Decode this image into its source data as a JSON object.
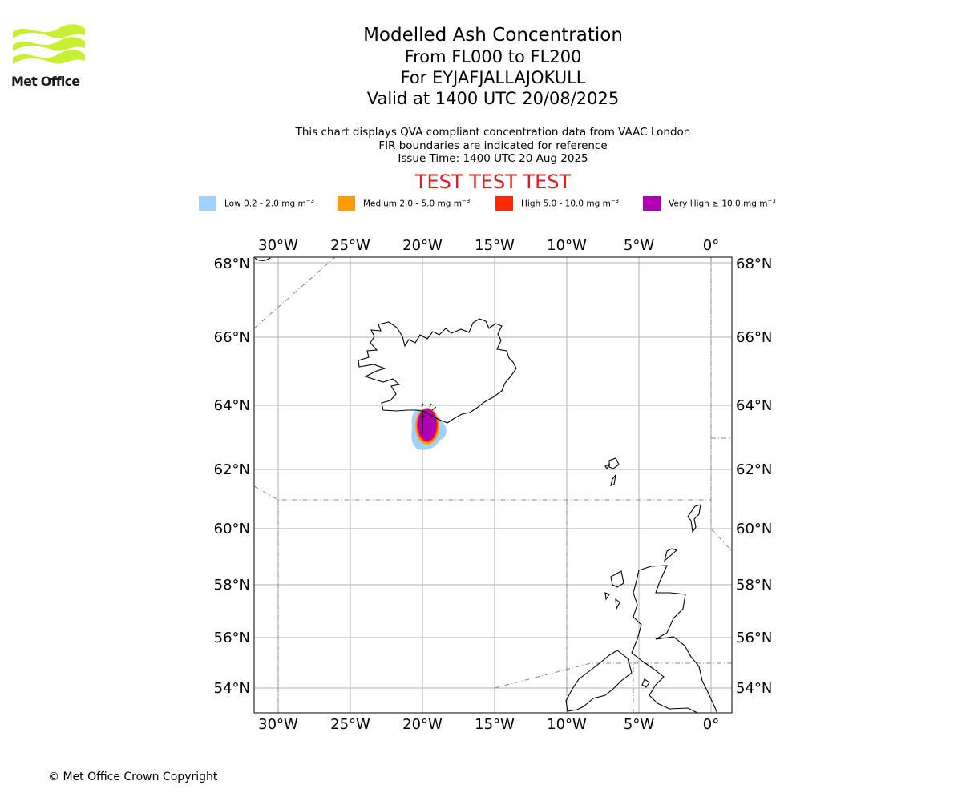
{
  "logo": {
    "text": "Met Office",
    "color": "#c8f032"
  },
  "title": {
    "line1": "Modelled Ash Concentration",
    "line2": "From FL000 to FL200",
    "line3": "For EYJAFJALLAJOKULL",
    "line4": "Valid at 1400 UTC 20/08/2025"
  },
  "subtitle": {
    "line1": "This chart displays QVA compliant concentration data from VAAC London",
    "line2": "FIR boundaries are indicated for reference",
    "line3": "Issue Time: 1400 UTC 20 Aug 2025"
  },
  "test_banner": "TEST TEST TEST",
  "legend": [
    {
      "label": "Low 0.2 - 2.0 mg m",
      "color": "#a0d2ff"
    },
    {
      "label": "Medium 2.0 - 5.0 mg m",
      "color": "#ff9b05"
    },
    {
      "label": "High 5.0 - 10.0 mg m",
      "color": "#ff2a05"
    },
    {
      "label": "Very High ≥ 10.0 mg m",
      "color": "#b000b4"
    }
  ],
  "legend_exponent": "−3",
  "map": {
    "lon_ticks": [
      "30°W",
      "25°W",
      "20°W",
      "15°W",
      "10°W",
      "5°W",
      "0°"
    ],
    "lat_ticks": [
      "68°N",
      "66°N",
      "64°N",
      "62°N",
      "60°N",
      "58°N",
      "56°N",
      "54°N"
    ],
    "volcano_lon": -19.6,
    "volcano_lat": 63.6
  },
  "copyright": "© Met Office Crown Copyright"
}
